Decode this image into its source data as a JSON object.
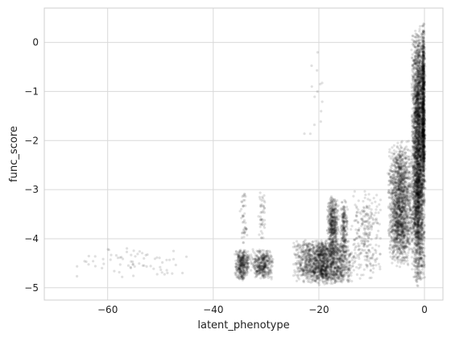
{
  "chart_data": {
    "type": "scatter",
    "title": "",
    "xlabel": "latent_phenotype",
    "ylabel": "func_score",
    "xlim": [
      -72,
      3.5
    ],
    "ylim": [
      -5.25,
      0.7
    ],
    "grid": true,
    "x_ticks": [
      -60,
      -40,
      -20,
      0
    ],
    "y_ticks": [
      0,
      -1,
      -2,
      -3,
      -4,
      -5
    ],
    "x_tick_labels": [
      "−60",
      "−40",
      "−20",
      "0"
    ],
    "y_tick_labels": [
      "0",
      "−1",
      "−2",
      "−3",
      "−4",
      "−5"
    ],
    "point_color": "#000000",
    "point_alpha": 0.12,
    "clusters": [
      {
        "x_range": [
          -69,
          -41
        ],
        "y_range": [
          -4.85,
          -4.15
        ],
        "count": 70
      },
      {
        "x_range": [
          -36,
          -33
        ],
        "y_range": [
          -4.85,
          -4.2
        ],
        "count": 350
      },
      {
        "x_range": [
          -35,
          -33.5
        ],
        "y_range": [
          -4.2,
          -3.0
        ],
        "count": 45
      },
      {
        "x_range": [
          -33,
          -28.5
        ],
        "y_range": [
          -4.85,
          -4.2
        ],
        "count": 380
      },
      {
        "x_range": [
          -31.5,
          -30
        ],
        "y_range": [
          -4.1,
          -3.0
        ],
        "count": 45
      },
      {
        "x_range": [
          -25,
          -13
        ],
        "y_range": [
          -4.95,
          -4.0
        ],
        "count": 1700
      },
      {
        "x_range": [
          -18.5,
          -16.2
        ],
        "y_range": [
          -4.3,
          -3.1
        ],
        "count": 450
      },
      {
        "x_range": [
          -16,
          -14.5
        ],
        "y_range": [
          -4.5,
          -3.2
        ],
        "count": 220
      },
      {
        "x_range": [
          -14,
          -8
        ],
        "y_range": [
          -4.9,
          -3.0
        ],
        "count": 260
      },
      {
        "x_range": [
          -7,
          -2
        ],
        "y_range": [
          -4.6,
          -2.0
        ],
        "count": 1700
      },
      {
        "x_range": [
          -2.5,
          0.2
        ],
        "y_range": [
          -5.0,
          0.35
        ],
        "count": 3300
      },
      {
        "x_range": [
          -0.5,
          0.1
        ],
        "y_range": [
          -3.0,
          0.4
        ],
        "count": 900
      },
      {
        "x_range": [
          -23.5,
          -17
        ],
        "y_range": [
          -2.3,
          0.1
        ],
        "count": 14
      }
    ]
  }
}
